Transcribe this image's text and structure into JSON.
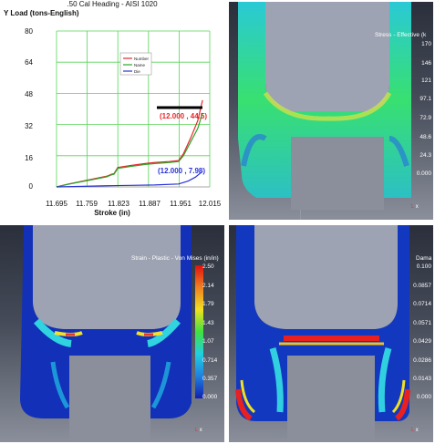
{
  "chart": {
    "title": ".50 Cal Heading - AISI 1020",
    "ylabel": "Y Load (tons-English)",
    "xlabel": "Stroke (in)",
    "yticks": [
      "80",
      "64",
      "48",
      "32",
      "16",
      "0"
    ],
    "xticks": [
      "11.695",
      "11.759",
      "11.823",
      "11.887",
      "11.951",
      "12.015"
    ],
    "legend": [
      "Number",
      "Name",
      "Die"
    ],
    "annotation_top": "(12.000 , 44.5)",
    "annotation_bottom": "(12.000 , 7.98)"
  },
  "chart_data": {
    "type": "line",
    "title": ".50 Cal Heading - AISI 1020",
    "xlabel": "Stroke (in)",
    "ylabel": "Y Load (tons-English)",
    "xlim": [
      11.695,
      12.015
    ],
    "ylim": [
      0,
      80
    ],
    "grid": true,
    "legend_position": "top-right",
    "series": [
      {
        "name": "Number",
        "color": "#e8262a",
        "x": [
          11.695,
          11.72,
          11.75,
          11.78,
          11.8,
          11.81,
          11.815,
          11.823,
          11.85,
          11.88,
          11.9,
          11.93,
          11.95,
          11.96,
          11.975,
          11.99,
          12.0
        ],
        "y": [
          0,
          1.5,
          3,
          4.5,
          5.5,
          6.5,
          6.8,
          10,
          11,
          12,
          12.5,
          13,
          13.5,
          17,
          25,
          34,
          44.5
        ]
      },
      {
        "name": "Name",
        "color": "#2aa52a",
        "x": [
          11.695,
          11.72,
          11.75,
          11.78,
          11.8,
          11.81,
          11.815,
          11.823,
          11.85,
          11.88,
          11.9,
          11.93,
          11.95,
          11.96,
          11.975,
          11.99,
          12.0
        ],
        "y": [
          0,
          1.4,
          2.8,
          4.2,
          5.2,
          6.2,
          6.5,
          9.5,
          10.5,
          11.5,
          12,
          12.5,
          13,
          16,
          23,
          30,
          38
        ]
      },
      {
        "name": "Die",
        "color": "#2a32d6",
        "x": [
          11.695,
          11.75,
          11.8,
          11.85,
          11.9,
          11.95,
          11.97,
          11.985,
          12.0
        ],
        "y": [
          0,
          0.3,
          0.6,
          0.8,
          1,
          1.5,
          3,
          5,
          7.98
        ]
      }
    ]
  },
  "stress": {
    "title": "Stress - Effective (k",
    "ticks": [
      "170",
      "146",
      "121",
      "97.1",
      "72.9",
      "48.6",
      "24.3",
      "0.000"
    ]
  },
  "strain": {
    "title": "Strain - Plastic - Von Mises (in/in)",
    "ticks": [
      "2.50",
      "2.14",
      "1.79",
      "1.43",
      "1.07",
      "0.714",
      "0.357",
      "0.000"
    ]
  },
  "damage": {
    "title": "Dama",
    "ticks": [
      "0.100",
      "0.0857",
      "0.0714",
      "0.0571",
      "0.0429",
      "0.0286",
      "0.0143",
      "0.000"
    ]
  },
  "colors": {
    "number": "#e8262a",
    "name": "#2aa52a",
    "die": "#2a32d6",
    "grid": "#58d458"
  }
}
